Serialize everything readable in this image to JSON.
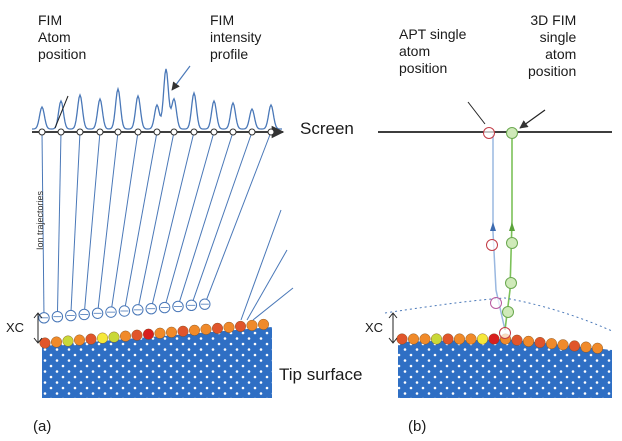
{
  "panel_a": {
    "fim_atom_label": "FIM\nAtom\nposition",
    "intensity_label": "FIM\nintensity\nprofile",
    "screen_label": "Screen",
    "trajectories_label": "Ion trajectories",
    "xc_label": "XC",
    "tip_label": "Tip surface",
    "panel_label": "(a)"
  },
  "panel_b": {
    "apt_label": "APT single\natom\nposition",
    "fim3d_label": "3D FIM\nsingle\natom\nposition",
    "xc_label": "XC",
    "panel_label": "(b)"
  },
  "colors": {
    "lattice": "#2f6fc4",
    "trajectory": "#4a78b8",
    "apt_path": "#9ab8e0",
    "fim_path": "#7cc159",
    "apt_marker": "#c23b45",
    "surface_atoms": [
      "#e0552b",
      "#f08a2a",
      "#c9d838",
      "#f5e83a",
      "#d81e1e"
    ]
  }
}
